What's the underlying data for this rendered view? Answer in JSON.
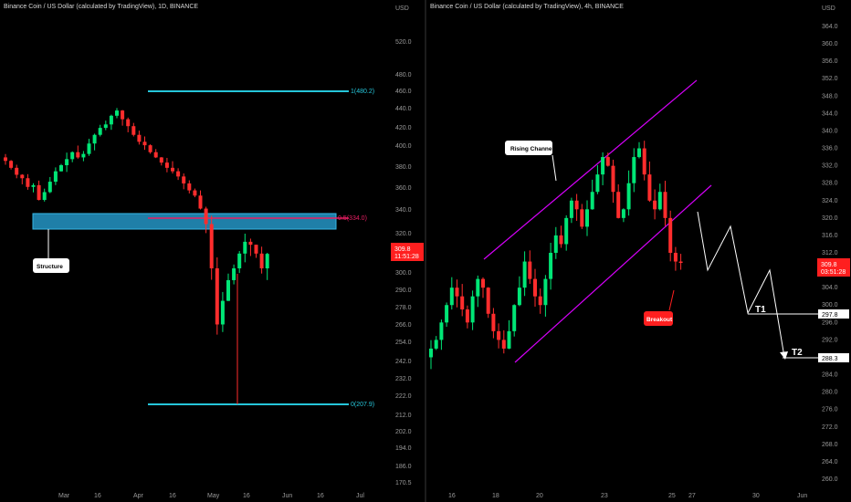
{
  "colors": {
    "up": "#00e676",
    "down": "#ff2d2d",
    "fib": "#26c6da",
    "fibmid": "#e91e63",
    "zone": "#1f7fa8",
    "channel": "#d500f9",
    "price_tag": "#ff1f1f"
  },
  "left": {
    "title": "Binance Coin / US Dollar (calculated by TradingView), 1D, BINANCE",
    "currency": "USD",
    "y_ticks": [
      "520.0",
      "480.0",
      "460.0",
      "440.0",
      "420.0",
      "400.0",
      "380.0",
      "360.0",
      "340.0",
      "320.0",
      "300.0",
      "290.0",
      "278.0",
      "266.0",
      "254.0",
      "242.0",
      "232.0",
      "222.0",
      "212.0",
      "202.0",
      "194.0",
      "186.0",
      "170.5"
    ],
    "x_ticks": [
      "Mar",
      "16",
      "Apr",
      "16",
      "May",
      "16",
      "Jun",
      "16",
      "Jul"
    ],
    "price_tag": {
      "price": "309.8",
      "timer": "11:51:28"
    },
    "fib_top_label": "1(480.2)",
    "fib_mid_label": "0.5(334.0)",
    "fib_bottom_label": "0(207.9)",
    "structure_label": "Structure"
  },
  "right": {
    "title": "Binance Coin / US Dollar (calculated by TradingView), 4h, BINANCE",
    "currency": "USD",
    "y_ticks": [
      "364.0",
      "360.0",
      "356.0",
      "352.0",
      "348.0",
      "344.0",
      "340.0",
      "336.0",
      "332.0",
      "328.0",
      "324.0",
      "320.0",
      "316.0",
      "312.0",
      "308.0",
      "304.0",
      "300.0",
      "296.0",
      "292.0",
      "288.0",
      "284.0",
      "280.0",
      "276.0",
      "272.0",
      "268.0",
      "264.0",
      "260.0"
    ],
    "x_ticks": [
      "16",
      "18",
      "20",
      "23",
      "25",
      "27",
      "30",
      "Jun"
    ],
    "price_tag": {
      "price": "309.8",
      "timer": "03:51:28"
    },
    "t1_label": "T1",
    "t1_price": "297.8",
    "t2_label": "T2",
    "t2_price": "288.3",
    "channel_label": "Rising Channel",
    "breakout_label": "Breakout"
  },
  "chart_data": [
    {
      "type": "candlestick",
      "title": "Binance Coin / US Dollar (calculated by TradingView), 1D, BINANCE",
      "ylabel": "USD",
      "x_ticks": [
        "Mar",
        "16",
        "Apr",
        "16",
        "May",
        "16",
        "Jun",
        "16",
        "Jul"
      ],
      "annotations": [
        {
          "type": "fib_level",
          "ratio": 1,
          "price": 480.2
        },
        {
          "type": "fib_level",
          "ratio": 0.5,
          "price": 334.0
        },
        {
          "type": "fib_level",
          "ratio": 0,
          "price": 207.9
        },
        {
          "type": "zone",
          "label": "Structure",
          "price_range": [
            322,
            338
          ]
        }
      ],
      "last_price": 309.8,
      "series": [
        {
          "close_path": [
            400,
            392,
            384,
            380,
            370,
            372,
            355,
            364,
            376,
            388,
            395,
            402,
            410,
            404,
            408,
            420,
            430,
            438,
            442,
            452,
            458,
            448,
            440,
            430,
            422,
            418,
            410,
            404,
            398,
            392,
            388,
            382,
            374,
            366,
            360,
            345,
            330,
            300,
            262,
            278,
            292,
            300,
            310,
            318,
            316,
            310,
            300,
            309.8
          ]
        }
      ]
    },
    {
      "type": "candlestick",
      "title": "Binance Coin / US Dollar (calculated by TradingView), 4h, BINANCE",
      "ylabel": "USD",
      "x_ticks": [
        "16",
        "18",
        "20",
        "23",
        "25",
        "27",
        "30",
        "Jun"
      ],
      "annotations": [
        {
          "type": "channel",
          "label": "Rising Channel"
        },
        {
          "type": "label",
          "text": "Breakout"
        },
        {
          "type": "target",
          "label": "T1",
          "price": 297.8
        },
        {
          "type": "target",
          "label": "T2",
          "price": 288.3
        }
      ],
      "last_price": 309.8,
      "series": [
        {
          "close_path": [
            290,
            292,
            296,
            300,
            304,
            302,
            299,
            296,
            302,
            306,
            304,
            298,
            294,
            292,
            290,
            294,
            300,
            304,
            310,
            306,
            302,
            300,
            306,
            312,
            316,
            314,
            320,
            324,
            322,
            318,
            322,
            326,
            330,
            334,
            332,
            326,
            320,
            322,
            328,
            334,
            336,
            330,
            324,
            322,
            326,
            320,
            312,
            310,
            309.8
          ]
        }
      ]
    }
  ]
}
